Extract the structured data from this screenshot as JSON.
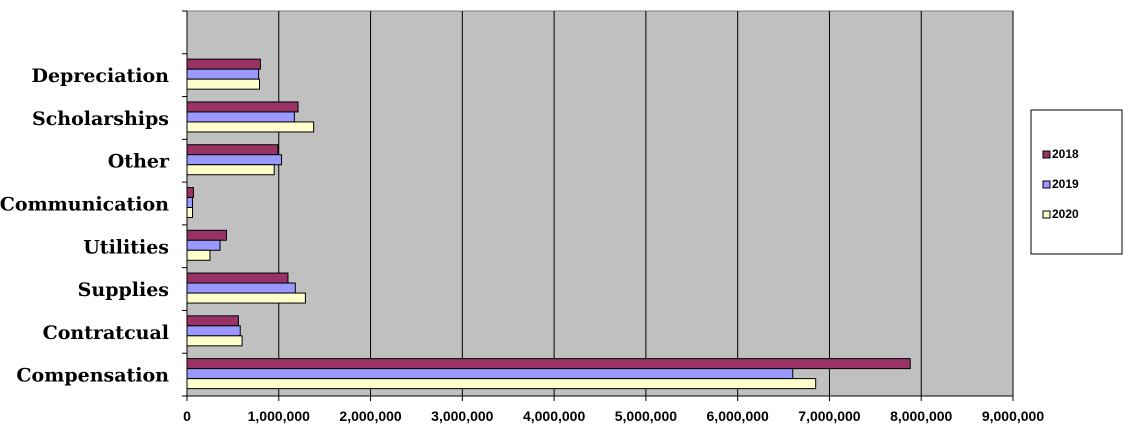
{
  "chart_data": {
    "type": "bar",
    "orientation": "horizontal",
    "categories": [
      "Compensation",
      "Contratcual",
      "Supplies",
      "Utilities",
      "Communication",
      "Other",
      "Scholarships",
      "Depreciation"
    ],
    "series": [
      {
        "name": "2018",
        "color": "#993366",
        "values": [
          7880000,
          560000,
          1100000,
          430000,
          70000,
          990000,
          1210000,
          800000
        ]
      },
      {
        "name": "2019",
        "color": "#9999ff",
        "values": [
          6600000,
          580000,
          1180000,
          360000,
          60000,
          1030000,
          1170000,
          780000
        ]
      },
      {
        "name": "2020",
        "color": "#ffffcc",
        "values": [
          6850000,
          600000,
          1290000,
          250000,
          60000,
          950000,
          1380000,
          790000
        ]
      }
    ],
    "xlim": [
      0,
      9000000
    ],
    "xticks": [
      "0",
      "1,000,000",
      "2,000,000",
      "3,000,000",
      "4,000,000",
      "5,000,000",
      "6,000,000",
      "7,000,000",
      "8,000,000",
      "9,000,000"
    ],
    "title": "",
    "xlabel": "",
    "ylabel": "",
    "grid": "vertical",
    "plot_background": "#c0c0c0",
    "legend_position": "right"
  }
}
